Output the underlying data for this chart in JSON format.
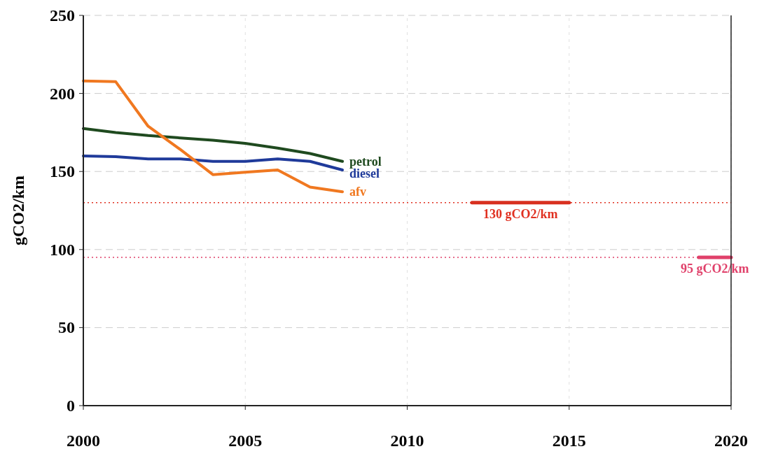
{
  "chart_data": {
    "type": "line",
    "ylabel": "gCO2/km",
    "x": [
      2000,
      2001,
      2002,
      2003,
      2004,
      2005,
      2006,
      2007,
      2008
    ],
    "series": [
      {
        "name": "petrol",
        "color": "#1f4a1f",
        "values": [
          177.5,
          175,
          173,
          171.5,
          170,
          168,
          165,
          161.5,
          156.5
        ]
      },
      {
        "name": "diesel",
        "color": "#1f3a9a",
        "values": [
          160,
          159.5,
          158,
          158,
          156.5,
          156.5,
          158,
          156.5,
          151
        ]
      },
      {
        "name": "afv",
        "color": "#f07820",
        "values": [
          208,
          207.5,
          179,
          164,
          148,
          149.5,
          151,
          140,
          137
        ]
      },
      {
        "type": "line",
        "color": "#d83020",
        "x": [
          2012,
          2015
        ],
        "values": [
          130,
          130
        ]
      },
      {
        "type": "line",
        "color": "#e0406a",
        "x": [
          2019,
          2020
        ],
        "values": [
          95,
          95
        ]
      }
    ],
    "ref_lines": [
      {
        "axis": "y",
        "value": 130,
        "label": "130 gCO2/km",
        "color": "#e03020",
        "line_style": "dotted"
      },
      {
        "axis": "y",
        "value": 95,
        "label": "95 gCO2/km",
        "color": "#e0406a",
        "line_style": "dotted"
      }
    ],
    "xlim": [
      2000,
      2020
    ],
    "xticks": [
      2000,
      2005,
      2010,
      2015,
      2020
    ],
    "ylim": [
      0,
      250
    ],
    "yticks": [
      0,
      50,
      100,
      150,
      200,
      250
    ],
    "grid": true,
    "marker": "none",
    "line_style": "solid"
  }
}
